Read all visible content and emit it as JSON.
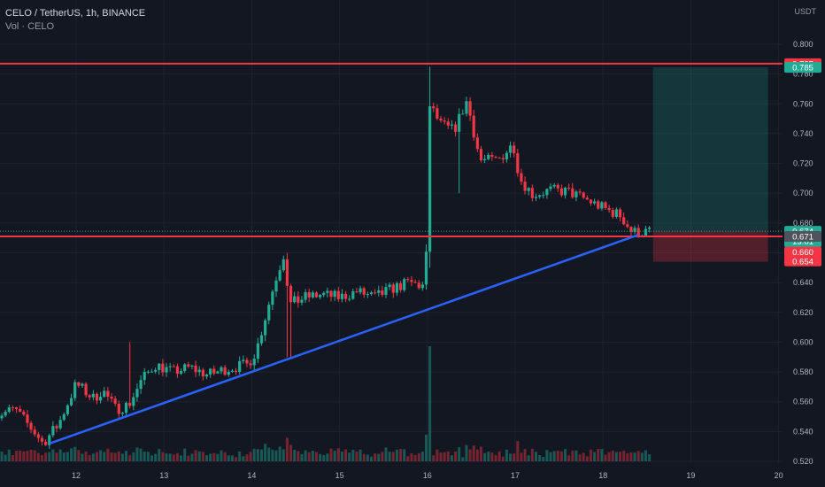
{
  "header": {
    "symbol_line": "CELO / TetherUS, 1h, BINANCE",
    "volume_line": "Vol · CELO"
  },
  "price_axis": {
    "currency": "USDT",
    "tick_labels": [
      "0.800",
      "0.780",
      "0.760",
      "0.740",
      "0.720",
      "0.700",
      "0.680",
      "0.660",
      "0.640",
      "0.620",
      "0.600",
      "0.580",
      "0.560",
      "0.540",
      "0.520"
    ]
  },
  "time_axis": {
    "tick_labels": [
      "12",
      "13",
      "14",
      "15",
      "16",
      "17",
      "18",
      "19",
      "20"
    ]
  },
  "price_badges": [
    {
      "text": "0.787",
      "price": 0.787,
      "color": "#f23645"
    },
    {
      "text": "0.785",
      "price": 0.7845,
      "color": "#22ab94"
    },
    {
      "text": "0.674",
      "price": 0.6745,
      "color": "#22ab94",
      "sub": "13:01"
    },
    {
      "text": "0.671",
      "price": 0.671,
      "color": "#50535e"
    },
    {
      "text": "0.660",
      "price": 0.6605,
      "color": "#f23645"
    },
    {
      "text": "0.654",
      "price": 0.6545,
      "color": "#f23645"
    }
  ],
  "colors": {
    "background": "#131722",
    "up": "#22ab94",
    "down": "#f23645",
    "grid": "#1e222d",
    "trendline": "#2962ff",
    "hline": "#f23645"
  },
  "chart_data": {
    "type": "candlestick",
    "title": "CELO / TetherUS, 1h, BINANCE",
    "ylabel": "USDT",
    "ylim": [
      0.518,
      0.808
    ],
    "xlim": [
      11.05,
      20.1
    ],
    "x_unit": "day of month",
    "horizontal_lines": [
      0.787,
      0.671
    ],
    "trendline": {
      "from": [
        11.7,
        0.532
      ],
      "to": [
        18.4,
        0.672
      ]
    },
    "position": {
      "type": "long",
      "entry": 0.6745,
      "target": 0.7845,
      "stop": 0.654,
      "start": 18.57,
      "end": 19.88
    },
    "close_anchors": [
      [
        11.05,
        0.55
      ],
      [
        11.3,
        0.555
      ],
      [
        11.55,
        0.538
      ],
      [
        11.62,
        0.532
      ],
      [
        11.8,
        0.545
      ],
      [
        12.0,
        0.572
      ],
      [
        12.2,
        0.562
      ],
      [
        12.3,
        0.568
      ],
      [
        12.45,
        0.555
      ],
      [
        12.6,
        0.558
      ],
      [
        12.75,
        0.575
      ],
      [
        12.9,
        0.585
      ],
      [
        13.1,
        0.58
      ],
      [
        13.3,
        0.583
      ],
      [
        13.5,
        0.578
      ],
      [
        13.7,
        0.582
      ],
      [
        13.95,
        0.585
      ],
      [
        14.05,
        0.594
      ],
      [
        14.15,
        0.616
      ],
      [
        14.27,
        0.642
      ],
      [
        14.38,
        0.662
      ],
      [
        14.42,
        0.625
      ],
      [
        14.6,
        0.63
      ],
      [
        14.8,
        0.632
      ],
      [
        15.0,
        0.63
      ],
      [
        15.2,
        0.634
      ],
      [
        15.4,
        0.63
      ],
      [
        15.6,
        0.636
      ],
      [
        15.8,
        0.64
      ],
      [
        15.98,
        0.637
      ],
      [
        16.02,
        0.76
      ],
      [
        16.15,
        0.746
      ],
      [
        16.3,
        0.742
      ],
      [
        16.45,
        0.762
      ],
      [
        16.6,
        0.722
      ],
      [
        16.8,
        0.722
      ],
      [
        16.98,
        0.733
      ],
      [
        17.05,
        0.71
      ],
      [
        17.2,
        0.699
      ],
      [
        17.4,
        0.702
      ],
      [
        17.6,
        0.701
      ],
      [
        17.8,
        0.696
      ],
      [
        18.0,
        0.69
      ],
      [
        18.2,
        0.685
      ],
      [
        18.33,
        0.674
      ],
      [
        18.42,
        0.674
      ],
      [
        18.55,
        0.674
      ]
    ],
    "ohlc_hourly": []
  }
}
